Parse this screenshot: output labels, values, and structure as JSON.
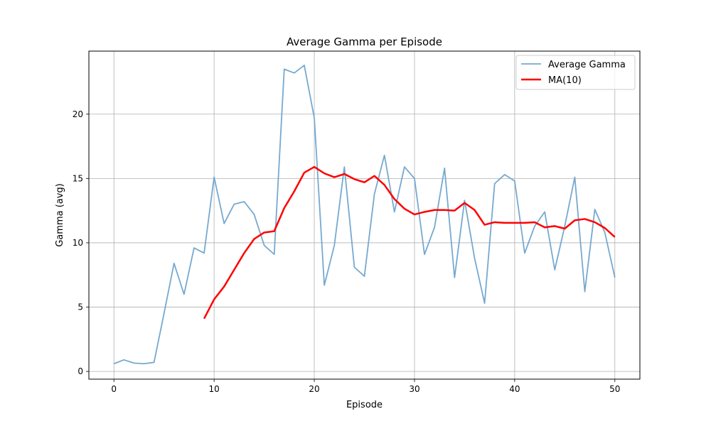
{
  "chart_data": {
    "type": "line",
    "title": "Average Gamma per Episode",
    "xlabel": "Episode",
    "ylabel": "Gamma (avg)",
    "xlim": [
      -2.5,
      52.5
    ],
    "ylim": [
      -0.6,
      24.9
    ],
    "xticks": [
      0,
      10,
      20,
      30,
      40,
      50
    ],
    "yticks": [
      0,
      5,
      10,
      15,
      20
    ],
    "grid": true,
    "legend": {
      "position": "top-right"
    },
    "series": [
      {
        "name": "Average Gamma",
        "color": "#76a9d0",
        "line_width": 1.8,
        "x": [
          0,
          1,
          2,
          3,
          4,
          5,
          6,
          7,
          8,
          9,
          10,
          11,
          12,
          13,
          14,
          15,
          16,
          17,
          18,
          19,
          20,
          21,
          22,
          23,
          24,
          25,
          26,
          27,
          28,
          29,
          30,
          31,
          32,
          33,
          34,
          35,
          36,
          37,
          38,
          39,
          40,
          41,
          42,
          43,
          44,
          45,
          46,
          47,
          48,
          49,
          50
        ],
        "values": [
          0.6,
          0.9,
          0.65,
          0.6,
          0.7,
          4.5,
          8.4,
          6.0,
          9.6,
          9.2,
          15.1,
          11.5,
          13.0,
          13.2,
          12.2,
          9.8,
          9.1,
          23.5,
          23.2,
          23.8,
          19.7,
          6.7,
          9.8,
          15.9,
          8.1,
          7.4,
          13.8,
          16.8,
          12.4,
          15.9,
          15.0,
          9.1,
          11.2,
          15.8,
          7.3,
          13.3,
          8.8,
          5.3,
          14.6,
          15.3,
          14.8,
          9.2,
          11.3,
          12.4,
          7.9,
          11.3,
          15.1,
          6.2,
          12.6,
          10.8,
          7.3
        ]
      },
      {
        "name": "MA(10)",
        "color": "#ff0000",
        "line_width": 2.5,
        "x": [
          9,
          10,
          11,
          12,
          13,
          14,
          15,
          16,
          17,
          18,
          19,
          20,
          21,
          22,
          23,
          24,
          25,
          26,
          27,
          28,
          29,
          30,
          31,
          32,
          33,
          34,
          35,
          36,
          37,
          38,
          39,
          40,
          41,
          42,
          43,
          44,
          45,
          46,
          47,
          48,
          49,
          50
        ],
        "values": [
          4.1,
          5.6,
          6.6,
          7.9,
          9.2,
          10.3,
          10.8,
          10.9,
          12.7,
          14.0,
          15.45,
          15.9,
          15.4,
          15.1,
          15.35,
          14.95,
          14.7,
          15.2,
          14.5,
          13.4,
          12.65,
          12.2,
          12.4,
          12.55,
          12.55,
          12.5,
          13.1,
          12.55,
          11.4,
          11.6,
          11.55,
          11.55,
          11.55,
          11.6,
          11.2,
          11.3,
          11.1,
          11.75,
          11.85,
          11.6,
          11.15,
          10.45
        ]
      }
    ]
  }
}
